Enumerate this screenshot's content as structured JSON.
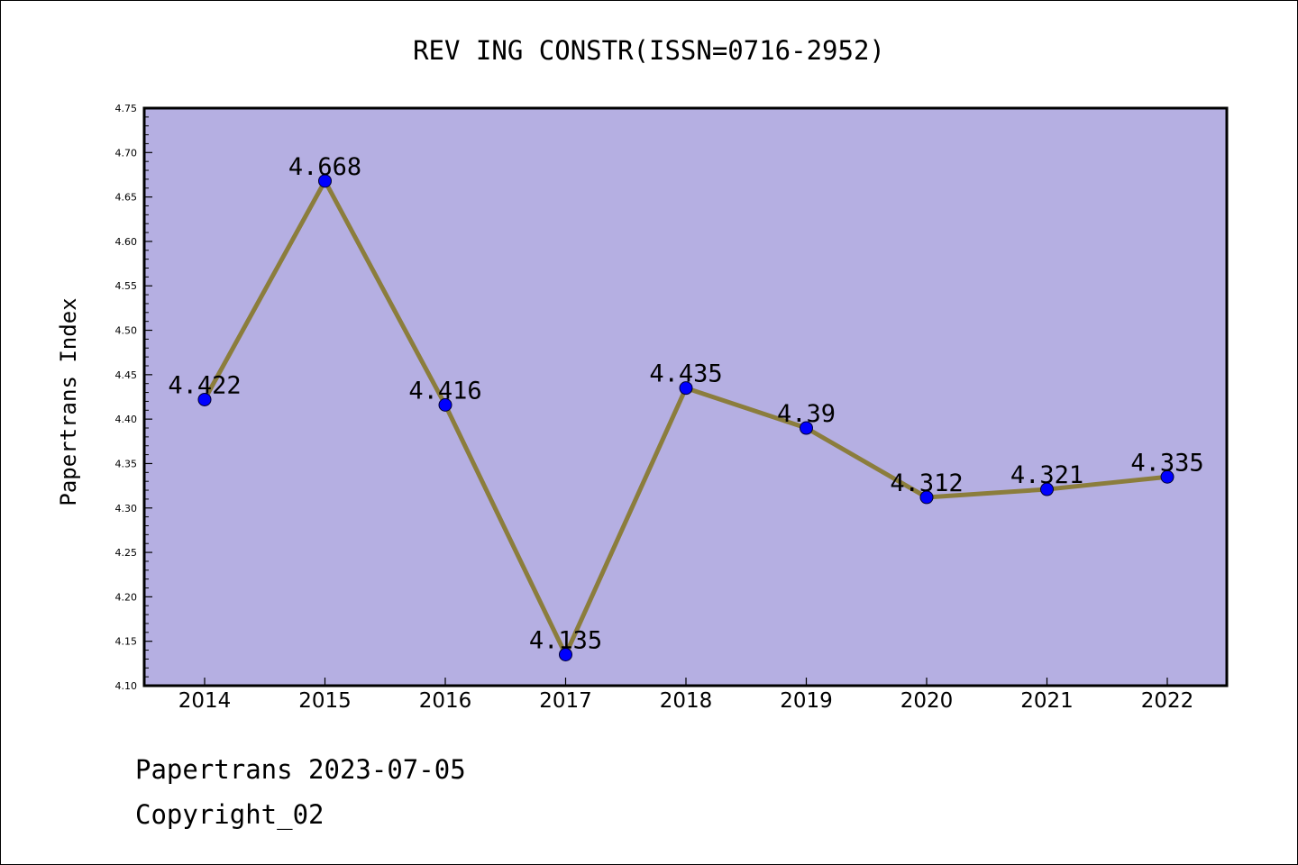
{
  "chart_data": {
    "type": "line",
    "title": "REV ING CONSTR(ISSN=0716-2952)",
    "xlabel": "",
    "ylabel": "Papertrans Index",
    "categories": [
      "2014",
      "2015",
      "2016",
      "2017",
      "2018",
      "2019",
      "2020",
      "2021",
      "2022"
    ],
    "values": [
      4.422,
      4.668,
      4.416,
      4.135,
      4.435,
      4.39,
      4.312,
      4.321,
      4.335
    ],
    "data_labels": [
      "4.422",
      "4.668",
      "4.416",
      "4.135",
      "4.435",
      "4.39",
      "4.312",
      "4.321",
      "4.335"
    ],
    "ylim": [
      4.1,
      4.75
    ],
    "yticks": [
      "4.10",
      "4.15",
      "4.20",
      "4.25",
      "4.30",
      "4.35",
      "4.40",
      "4.45",
      "4.50",
      "4.55",
      "4.60",
      "4.65",
      "4.70",
      "4.75"
    ],
    "grid": false,
    "legend": "none",
    "colors": {
      "plot_background": "#b5afe2",
      "line": "#8b7d3c",
      "marker": "#0000ff"
    }
  },
  "footer": {
    "source": "Papertrans 2023-07-05",
    "copyright": "Copyright_02"
  }
}
